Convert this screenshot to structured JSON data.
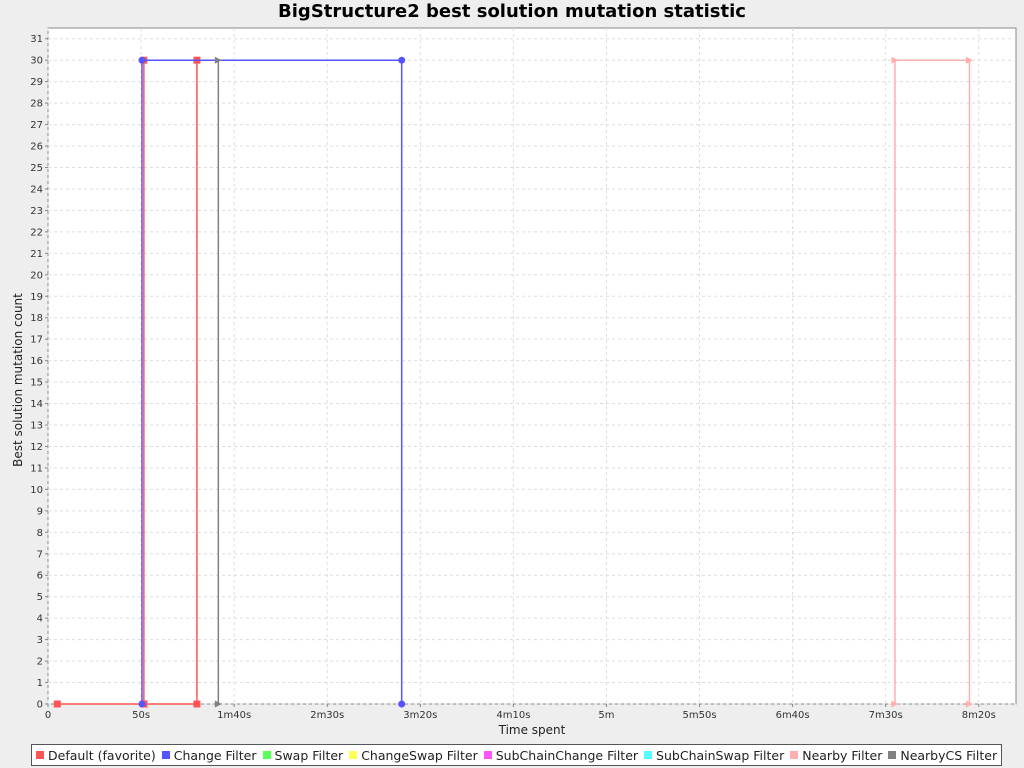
{
  "chart_data": {
    "type": "line",
    "title": "BigStructure2 best solution mutation statistic",
    "xlabel": "Time spent",
    "ylabel": "Best solution mutation count",
    "xlim": [
      0,
      520
    ],
    "ylim": [
      0,
      31.5
    ],
    "x_ticks": [
      {
        "value": 0,
        "label": "0"
      },
      {
        "value": 50,
        "label": "50s"
      },
      {
        "value": 100,
        "label": "1m40s"
      },
      {
        "value": 150,
        "label": "2m30s"
      },
      {
        "value": 200,
        "label": "3m20s"
      },
      {
        "value": 250,
        "label": "4m10s"
      },
      {
        "value": 300,
        "label": "5m"
      },
      {
        "value": 350,
        "label": "5m50s"
      },
      {
        "value": 400,
        "label": "6m40s"
      },
      {
        "value": 450,
        "label": "7m30s"
      },
      {
        "value": 500,
        "label": "8m20s"
      }
    ],
    "y_ticks": [
      0,
      1,
      2,
      3,
      4,
      5,
      6,
      7,
      8,
      9,
      10,
      11,
      12,
      13,
      14,
      15,
      16,
      17,
      18,
      19,
      20,
      21,
      22,
      23,
      24,
      25,
      26,
      27,
      28,
      29,
      30,
      31
    ],
    "grid": true,
    "legend_position": "bottom",
    "series": [
      {
        "name": "Default (favorite)",
        "color": "#ff5555",
        "marker": "square",
        "x": [
          5,
          51.5,
          51.5,
          51.5,
          80,
          80
        ],
        "y": [
          0,
          0,
          30,
          0,
          0,
          30
        ]
      },
      {
        "name": "Change Filter",
        "color": "#5555ff",
        "marker": "circle",
        "x": [
          50.5,
          50.5,
          190,
          190
        ],
        "y": [
          0,
          30,
          30,
          0
        ]
      },
      {
        "name": "Swap Filter",
        "color": "#55ff55",
        "marker": "triangle-up",
        "x": [],
        "y": []
      },
      {
        "name": "ChangeSwap Filter",
        "color": "#ffff55",
        "marker": "diamond",
        "x": [],
        "y": []
      },
      {
        "name": "SubChainChange Filter",
        "color": "#ff55ff",
        "marker": "triangle-down",
        "x": [],
        "y": []
      },
      {
        "name": "SubChainSwap Filter",
        "color": "#55ffff",
        "marker": "triangle-left",
        "x": [],
        "y": []
      },
      {
        "name": "Nearby Filter",
        "color": "#ffafaf",
        "marker": "triangle-right",
        "x": [
          455,
          455,
          495,
          495
        ],
        "y": [
          0,
          30,
          30,
          0
        ]
      },
      {
        "name": "NearbyCS Filter",
        "color": "#808080",
        "marker": "triangle-right",
        "x": [
          91.5,
          91.5
        ],
        "y": [
          0,
          30
        ]
      }
    ]
  }
}
